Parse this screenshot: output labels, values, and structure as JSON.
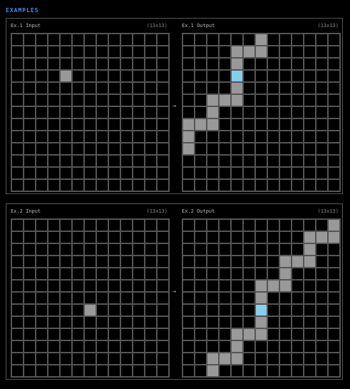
{
  "heading": "EXAMPLES",
  "arrow": "→",
  "examples": [
    {
      "input": {
        "title": "Ex.1 Input",
        "size": "(13x13)",
        "cells": [
          [
            3,
            4
          ]
        ]
      },
      "output": {
        "title": "Ex.1 Output",
        "size": "(13x13)",
        "cells": [
          [
            0,
            6
          ],
          [
            1,
            4
          ],
          [
            1,
            5
          ],
          [
            1,
            6
          ],
          [
            2,
            4
          ],
          [
            3,
            4,
            2
          ],
          [
            4,
            4
          ],
          [
            5,
            2
          ],
          [
            5,
            3
          ],
          [
            5,
            4
          ],
          [
            6,
            2
          ],
          [
            7,
            0
          ],
          [
            7,
            1
          ],
          [
            7,
            2
          ],
          [
            8,
            0
          ],
          [
            9,
            0
          ]
        ]
      }
    },
    {
      "input": {
        "title": "Ex.2 Input",
        "size": "(13x13)",
        "cells": [
          [
            7,
            6
          ]
        ]
      },
      "output": {
        "title": "Ex.2 Output",
        "size": "(13x13)",
        "cells": [
          [
            0,
            12
          ],
          [
            1,
            10
          ],
          [
            1,
            11
          ],
          [
            1,
            12
          ],
          [
            2,
            10
          ],
          [
            3,
            8
          ],
          [
            3,
            9
          ],
          [
            3,
            10
          ],
          [
            4,
            8
          ],
          [
            5,
            6
          ],
          [
            5,
            7
          ],
          [
            5,
            8
          ],
          [
            6,
            6
          ],
          [
            7,
            6,
            2
          ],
          [
            8,
            6
          ],
          [
            9,
            4
          ],
          [
            9,
            5
          ],
          [
            9,
            6
          ],
          [
            10,
            4
          ],
          [
            11,
            2
          ],
          [
            11,
            3
          ],
          [
            11,
            4
          ],
          [
            12,
            2
          ]
        ]
      }
    }
  ],
  "colors": {
    "accent": "#3d8bff",
    "filled": "#999999",
    "highlight": "#87ceeb",
    "gridline": "#555555"
  }
}
